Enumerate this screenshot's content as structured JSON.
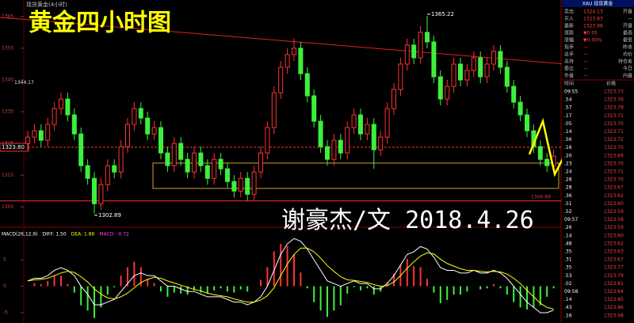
{
  "chart_data": {
    "type": "candlestick",
    "title": "黄金四小时图",
    "subtitle": "谢豪杰/文  2018.4.26",
    "source_label": "现货黄金(4小时)",
    "up_color": "#ff3232",
    "down_color": "#3cf03c",
    "ylim": [
      1299.6,
      1370.2
    ],
    "yticks": [
      1305,
      1315,
      1325,
      1335,
      1345,
      1355,
      1365
    ],
    "ohlc": [
      [
        1325,
        1329,
        1323,
        1327
      ],
      [
        1327,
        1331,
        1325,
        1329
      ],
      [
        1329,
        1331,
        1324,
        1326
      ],
      [
        1326,
        1333,
        1324,
        1331
      ],
      [
        1331,
        1338,
        1329,
        1336
      ],
      [
        1336,
        1341,
        1334,
        1339
      ],
      [
        1339,
        1341,
        1332,
        1334
      ],
      [
        1334,
        1336,
        1326,
        1328
      ],
      [
        1328,
        1330,
        1316,
        1318
      ],
      [
        1318,
        1320,
        1312,
        1314
      ],
      [
        1314,
        1316,
        1302.89,
        1306
      ],
      [
        1306,
        1314,
        1304,
        1312
      ],
      [
        1312,
        1320,
        1310,
        1318
      ],
      [
        1318,
        1320,
        1314,
        1316
      ],
      [
        1316,
        1326,
        1314,
        1324
      ],
      [
        1324,
        1333,
        1322,
        1331
      ],
      [
        1331,
        1338,
        1329,
        1336
      ],
      [
        1336,
        1338,
        1331,
        1333
      ],
      [
        1333,
        1335,
        1326,
        1328
      ],
      [
        1328,
        1332,
        1326,
        1330
      ],
      [
        1330,
        1332,
        1320,
        1322
      ],
      [
        1322,
        1324,
        1316,
        1318
      ],
      [
        1318,
        1327,
        1316,
        1325
      ],
      [
        1325,
        1327,
        1318,
        1320
      ],
      [
        1320,
        1322,
        1314,
        1316
      ],
      [
        1316,
        1324,
        1314,
        1322
      ],
      [
        1322,
        1324,
        1316,
        1318
      ],
      [
        1318,
        1320,
        1312,
        1314
      ],
      [
        1314,
        1322,
        1312,
        1320
      ],
      [
        1320,
        1322,
        1315,
        1317
      ],
      [
        1317,
        1319,
        1311,
        1313
      ],
      [
        1313,
        1315,
        1308,
        1310
      ],
      [
        1310,
        1316,
        1308,
        1314
      ],
      [
        1314,
        1316,
        1307,
        1309
      ],
      [
        1309,
        1318,
        1307,
        1316
      ],
      [
        1316,
        1324,
        1314,
        1322
      ],
      [
        1322,
        1332,
        1320,
        1330
      ],
      [
        1330,
        1343,
        1328,
        1341
      ],
      [
        1341,
        1351,
        1339,
        1349
      ],
      [
        1349,
        1355,
        1347,
        1353
      ],
      [
        1353,
        1358,
        1351,
        1355
      ],
      [
        1355,
        1357,
        1345,
        1347
      ],
      [
        1347,
        1349,
        1338,
        1340
      ],
      [
        1340,
        1342,
        1330,
        1332
      ],
      [
        1332,
        1334,
        1322,
        1324
      ],
      [
        1324,
        1326,
        1318,
        1320
      ],
      [
        1320,
        1328,
        1318,
        1326
      ],
      [
        1326,
        1328,
        1320,
        1322
      ],
      [
        1322,
        1332,
        1320,
        1330
      ],
      [
        1330,
        1336,
        1328,
        1334
      ],
      [
        1334,
        1336,
        1326,
        1328
      ],
      [
        1328,
        1333,
        1326,
        1331
      ],
      [
        1331,
        1333,
        1317,
        1323
      ],
      [
        1323,
        1329,
        1321,
        1327
      ],
      [
        1327,
        1338,
        1325,
        1336
      ],
      [
        1336,
        1344,
        1334,
        1342
      ],
      [
        1342,
        1352,
        1340,
        1350
      ],
      [
        1350,
        1358,
        1348,
        1356
      ],
      [
        1356,
        1358,
        1350,
        1352
      ],
      [
        1352,
        1362,
        1350,
        1360
      ],
      [
        1360,
        1365.22,
        1355,
        1357
      ],
      [
        1357,
        1359,
        1344,
        1346
      ],
      [
        1346,
        1348,
        1337,
        1339
      ],
      [
        1339,
        1345,
        1337,
        1343
      ],
      [
        1343,
        1352,
        1341,
        1350
      ],
      [
        1350,
        1352,
        1343,
        1345
      ],
      [
        1345,
        1350,
        1343,
        1348
      ],
      [
        1348,
        1354,
        1346,
        1352
      ],
      [
        1352,
        1354,
        1344,
        1346
      ],
      [
        1346,
        1352,
        1344,
        1350
      ],
      [
        1350,
        1356,
        1348,
        1354
      ],
      [
        1354,
        1356,
        1347,
        1349
      ],
      [
        1349,
        1351,
        1341,
        1343
      ],
      [
        1343,
        1345,
        1336,
        1338
      ],
      [
        1338,
        1340,
        1332,
        1334
      ],
      [
        1334,
        1336,
        1327,
        1329
      ],
      [
        1329,
        1331,
        1322,
        1324
      ],
      [
        1324,
        1326,
        1318,
        1320
      ],
      [
        1320,
        1322,
        1316,
        1318
      ],
      [
        1318,
        1323,
        1316,
        1321
      ]
    ],
    "annotations": [
      {
        "index": 60,
        "value": 1365.22
      },
      {
        "index": 10,
        "value": 1302.89
      }
    ],
    "left_label": 1344.17,
    "levels": [
      {
        "value": 1323.8,
        "label": "1323.80",
        "color": "#ff3030",
        "dashed": true
      },
      {
        "value": 1306.89,
        "label": "1306.89",
        "color": "#ff3030",
        "dashed": false
      }
    ],
    "macd": {
      "title": "MACD(26,12,9)",
      "dif_label": "DIFF: 1.50",
      "dea_label": "DEA: 1.86",
      "macd_label": "MACD: -0.72",
      "dif_color": "#ffffff",
      "dea_color": "#ffff00",
      "ylim": [
        -6.5,
        9.5
      ],
      "yticks": [
        -5,
        0,
        5
      ],
      "dif": [
        1,
        1.5,
        1.5,
        2,
        3,
        3.5,
        3,
        2,
        0,
        -1.5,
        -3.5,
        -3.5,
        -3,
        -2.5,
        -1,
        0.5,
        2,
        2.5,
        2,
        2,
        1,
        0,
        0,
        -0.5,
        -1,
        -1,
        -1.5,
        -2,
        -2,
        -2,
        -2.5,
        -3,
        -3,
        -3.5,
        -3,
        -2,
        0,
        3,
        6,
        8,
        9,
        8.5,
        7,
        5,
        3,
        1,
        0.5,
        0,
        0.5,
        1,
        0.5,
        0.5,
        -0.5,
        -0.5,
        0.5,
        2,
        4,
        6,
        6.5,
        7.5,
        7,
        5.5,
        3.5,
        3,
        3,
        2.5,
        2.5,
        3,
        2.5,
        2.5,
        3,
        2.5,
        1.5,
        0,
        -1.5,
        -3,
        -4,
        -5,
        -5,
        -4.5
      ],
      "dea": [
        1,
        1.2,
        1.3,
        1.5,
        2,
        2.5,
        2.8,
        2.6,
        1.8,
        0.8,
        -0.5,
        -1.5,
        -2.2,
        -2.4,
        -2,
        -1.3,
        -0.3,
        0.7,
        1.3,
        1.7,
        1.5,
        1,
        0.6,
        0.2,
        -0.2,
        -0.6,
        -0.9,
        -1.3,
        -1.6,
        -1.8,
        -2,
        -2.4,
        -2.7,
        -3,
        -3,
        -2.6,
        -1.8,
        -0.3,
        2,
        4.2,
        6,
        7.2,
        7.2,
        6.5,
        5.3,
        3.9,
        2.8,
        1.8,
        1.2,
        1.1,
        0.9,
        0.7,
        0.3,
        0,
        0.1,
        0.8,
        2,
        3.4,
        4.6,
        5.7,
        6.3,
        6.1,
        5.1,
        4.3,
        3.8,
        3.3,
        3,
        3,
        2.8,
        2.7,
        2.8,
        2.7,
        2.3,
        1.5,
        0.5,
        -0.8,
        -2,
        -3.2,
        -4,
        -4.3
      ],
      "hist": [
        0,
        0.6,
        0.4,
        1,
        2,
        2,
        0.4,
        -1.2,
        -3.6,
        -4.6,
        -6,
        -4,
        -1.6,
        -0.2,
        2,
        3.6,
        4.6,
        3.6,
        1.4,
        0.6,
        -1,
        -2,
        -1.2,
        -1.4,
        -1.6,
        -0.8,
        -1.2,
        -1.4,
        -0.8,
        -0.4,
        -1,
        -1.2,
        -0.6,
        -1,
        0,
        1.2,
        3.6,
        6.6,
        8,
        7.6,
        6,
        2.6,
        -0.4,
        -3,
        -4.6,
        -5.8,
        -4.6,
        -3.6,
        -1.4,
        -0.2,
        -0.8,
        -0.4,
        -1.6,
        -1,
        0.8,
        2.4,
        4,
        5.2,
        3.8,
        3.6,
        1.4,
        -1.2,
        -3.2,
        -2.6,
        -1.6,
        -1.6,
        -1,
        0,
        -0.6,
        -0.4,
        0.4,
        -0.4,
        -1.6,
        -3,
        -4,
        -4.4,
        -4,
        -3.6,
        -2,
        -0.4
      ]
    }
  },
  "quote_panel": {
    "title": "XAU 现货黄金",
    "rows": [
      [
        "卖出",
        "1324.13",
        "开盘"
      ],
      [
        "买入",
        "1323.83",
        "—"
      ],
      [
        "最新",
        "1323.98",
        "开盘"
      ],
      [
        "涨跌",
        "▼0.05",
        "最高"
      ],
      [
        "涨幅",
        "▼0.00%",
        "最低"
      ],
      [
        "现手",
        "—",
        "昨收"
      ],
      [
        "总手",
        "—",
        "均价"
      ],
      [
        "总持",
        "—",
        "持仓差"
      ],
      [
        "委比",
        "—",
        "今日"
      ],
      [
        "外盘",
        "—",
        "内盘"
      ]
    ],
    "trades_header": [
      "时间",
      "价格"
    ],
    "times": [
      "09:55",
      ".54",
      ".57",
      ".17",
      ".05",
      ".14",
      ".56",
      ".16",
      ".20",
      ".23",
      ".24",
      ".28",
      ".28",
      ".36",
      ".51",
      ".52",
      "09:57",
      ".26",
      ".14",
      ".48",
      ".35",
      ".31",
      ".35",
      ".53",
      ".02",
      "09:58",
      ".14",
      ".43",
      ".16"
    ],
    "prices": [
      "1323.73",
      "1323.76",
      "1323.78",
      "1323.71",
      "1323.70",
      "1323.71",
      "1323.72",
      "1323.70",
      "1323.69",
      "1323.70",
      "1323.71",
      "1323.70",
      "1323.67",
      "1323.62",
      "1323.60",
      "1323.59",
      "1323.58",
      "1323.59",
      "1323.60",
      "1323.62",
      "1323.63",
      "1323.67",
      "1323.77",
      "1323.79",
      "1323.81",
      "1323.84",
      "1323.85",
      "1323.86",
      "1323.98"
    ]
  }
}
